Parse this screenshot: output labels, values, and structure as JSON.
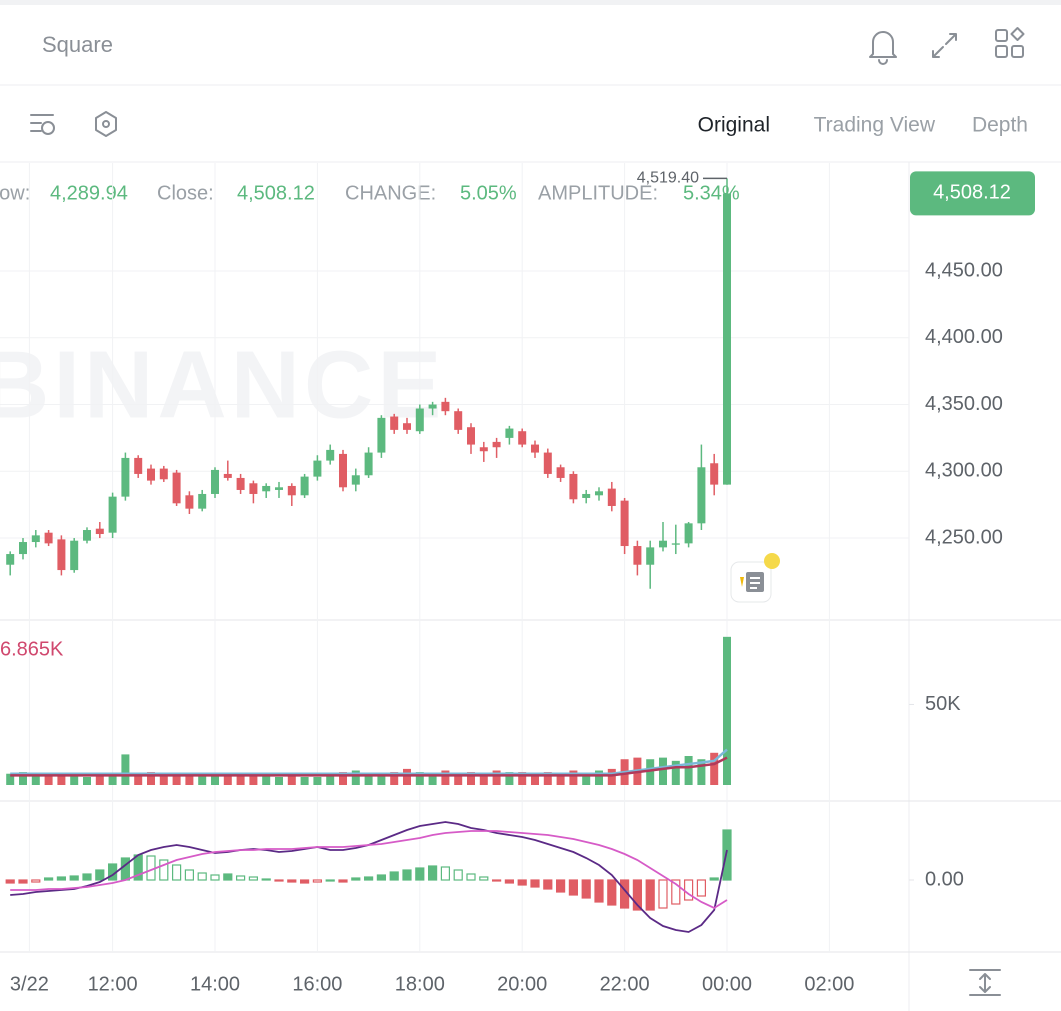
{
  "header": {
    "title": "Square"
  },
  "toolbar": {
    "tabs": [
      "Original",
      "Trading View",
      "Depth"
    ],
    "active_tab": 0
  },
  "info": {
    "items": [
      {
        "label": "Low:",
        "value": "4,289.94"
      },
      {
        "label": "Close:",
        "value": "4,508.12"
      },
      {
        "label": "CHANGE:",
        "value": "5.05%"
      },
      {
        "label": "AMPLITUDE:",
        "value": "5.34%"
      }
    ]
  },
  "chart_data": [
    {
      "type": "candlestick",
      "watermark": "BINANCE",
      "up_color": "#5cb97f",
      "down_color": "#e05d64",
      "last_price": {
        "value": 4508.12,
        "label": "4,508.12"
      },
      "high_marker": {
        "value": 4519.4,
        "label": "4,519.40"
      },
      "ylim": [
        4188.6,
        4530.9
      ],
      "yticks": [
        {
          "value": 4250,
          "label": "4,250.00"
        },
        {
          "value": 4300,
          "label": "4,300.00"
        },
        {
          "value": 4350,
          "label": "4,350.00"
        },
        {
          "value": 4400,
          "label": "4,400.00"
        },
        {
          "value": 4450,
          "label": "4,450.00"
        }
      ],
      "xticks": [
        {
          "value": 1.5,
          "label": "3/22"
        },
        {
          "value": 8,
          "label": "12:00"
        },
        {
          "value": 16,
          "label": "14:00"
        },
        {
          "value": 24,
          "label": "16:00"
        },
        {
          "value": 32,
          "label": "18:00"
        },
        {
          "value": 40,
          "label": "20:00"
        },
        {
          "value": 48,
          "label": "22:00"
        },
        {
          "value": 56,
          "label": "00:00"
        },
        {
          "value": 64,
          "label": "02:00"
        }
      ],
      "grid": true,
      "candles": [
        [
          4230,
          4240,
          4222,
          4238
        ],
        [
          4238,
          4250,
          4234,
          4247
        ],
        [
          4247,
          4256,
          4243,
          4252
        ],
        [
          4254,
          4256,
          4244,
          4246
        ],
        [
          4249,
          4252,
          4222,
          4226
        ],
        [
          4226,
          4250,
          4224,
          4248
        ],
        [
          4248,
          4258,
          4246,
          4256
        ],
        [
          4257,
          4262,
          4250,
          4253
        ],
        [
          4254,
          4284,
          4250,
          4281
        ],
        [
          4281,
          4314,
          4278,
          4310
        ],
        [
          4310,
          4312,
          4295,
          4298
        ],
        [
          4302,
          4305,
          4290,
          4293
        ],
        [
          4302,
          4304,
          4292,
          4294
        ],
        [
          4299,
          4301,
          4274,
          4276
        ],
        [
          4282,
          4285,
          4268,
          4272
        ],
        [
          4272,
          4286,
          4270,
          4283
        ],
        [
          4283,
          4303,
          4280,
          4301
        ],
        [
          4298,
          4308,
          4293,
          4295
        ],
        [
          4295,
          4298,
          4283,
          4286
        ],
        [
          4291,
          4293,
          4276,
          4283
        ],
        [
          4285,
          4291,
          4280,
          4289
        ],
        [
          4286,
          4292,
          4280,
          4288
        ],
        [
          4289,
          4291,
          4274,
          4282
        ],
        [
          4282,
          4298,
          4280,
          4296
        ],
        [
          4296,
          4312,
          4293,
          4308
        ],
        [
          4308,
          4320,
          4305,
          4316
        ],
        [
          4313,
          4316,
          4285,
          4288
        ],
        [
          4290,
          4302,
          4285,
          4297
        ],
        [
          4297,
          4318,
          4295,
          4314
        ],
        [
          4314,
          4342,
          4310,
          4340
        ],
        [
          4341,
          4343,
          4328,
          4331
        ],
        [
          4336,
          4340,
          4328,
          4331
        ],
        [
          4330,
          4350,
          4328,
          4347
        ],
        [
          4347,
          4352,
          4342,
          4350
        ],
        [
          4352,
          4355,
          4342,
          4345
        ],
        [
          4345,
          4347,
          4328,
          4331
        ],
        [
          4333,
          4336,
          4313,
          4320
        ],
        [
          4318,
          4322,
          4307,
          4315
        ],
        [
          4322,
          4325,
          4310,
          4318
        ],
        [
          4325,
          4334,
          4320,
          4332
        ],
        [
          4330,
          4332,
          4318,
          4320
        ],
        [
          4320,
          4323,
          4310,
          4314
        ],
        [
          4314,
          4317,
          4295,
          4298
        ],
        [
          4303,
          4305,
          4292,
          4295
        ],
        [
          4298,
          4300,
          4276,
          4279
        ],
        [
          4280,
          4286,
          4276,
          4283
        ],
        [
          4282,
          4288,
          4278,
          4285
        ],
        [
          4287,
          4292,
          4270,
          4274
        ],
        [
          4278,
          4280,
          4238,
          4244
        ],
        [
          4244,
          4248,
          4222,
          4230
        ],
        [
          4230,
          4248,
          4212,
          4243
        ],
        [
          4243,
          4262,
          4240,
          4248
        ],
        [
          4245,
          4260,
          4238,
          4246
        ],
        [
          4246,
          4262,
          4243,
          4261
        ],
        [
          4261,
          4320,
          4256,
          4303
        ],
        [
          4306,
          4313,
          4282,
          4290
        ],
        [
          4290,
          4519.4,
          4289.94,
          4508.12
        ]
      ]
    },
    {
      "type": "volume",
      "label": "6.865K",
      "label_color": "#d0486e",
      "ylim": [
        0,
        95
      ],
      "yticks": [
        {
          "value": 50,
          "label": "50K"
        }
      ],
      "values": [
        7,
        8,
        7,
        6,
        7,
        6,
        5,
        6,
        6,
        19,
        7,
        8,
        7,
        7,
        6,
        7,
        6,
        7,
        6,
        6,
        6,
        5,
        6,
        5,
        5,
        6,
        8,
        9,
        7,
        7,
        8,
        10,
        8,
        7,
        9,
        7,
        8,
        7,
        9,
        8,
        8,
        7,
        8,
        7,
        9,
        7,
        9,
        10,
        16,
        17,
        16,
        17,
        15,
        18,
        16,
        20,
        92
      ],
      "series": [
        {
          "color": "#7bb8d8",
          "values": [
            7,
            7,
            7,
            7,
            7,
            7,
            7,
            7,
            7,
            7,
            7,
            7,
            7,
            7,
            7,
            7,
            7,
            7,
            7,
            7,
            7,
            7,
            7,
            7,
            7,
            7,
            7,
            7,
            7,
            7,
            7,
            7,
            7,
            7,
            7,
            7,
            7,
            7,
            7,
            7,
            7,
            7,
            7,
            7,
            7,
            7,
            7,
            7,
            8,
            9,
            10,
            11,
            12,
            13,
            14,
            15,
            22
          ]
        },
        {
          "color": "#b03a5b",
          "values": [
            6,
            6,
            6,
            6,
            6,
            6,
            6,
            6,
            6,
            6,
            6,
            6,
            6,
            6,
            6,
            6,
            6,
            6,
            6,
            6,
            6,
            6,
            6,
            6,
            6,
            6,
            6,
            6,
            6,
            6,
            6,
            6,
            6,
            6,
            6,
            6,
            6,
            6,
            6,
            6,
            6,
            6,
            6,
            6,
            6,
            6,
            6,
            6,
            7,
            8,
            9,
            10,
            11,
            11,
            12,
            13,
            17
          ]
        }
      ]
    },
    {
      "type": "macd",
      "ylim": [
        -70,
        77
      ],
      "yticks": [
        {
          "value": 0,
          "label": "0.00"
        }
      ],
      "histogram": [
        -3,
        -3,
        -2,
        2,
        3,
        4,
        6,
        10,
        16,
        22,
        25,
        24,
        20,
        15,
        10,
        7,
        5,
        6,
        4,
        3,
        1,
        -1,
        -2,
        -3,
        -2,
        0,
        -2,
        2,
        3,
        5,
        8,
        10,
        12,
        14,
        13,
        10,
        6,
        3,
        -1,
        -3,
        -5,
        -7,
        -9,
        -12,
        -15,
        -18,
        -22,
        -25,
        -28,
        -30,
        -30,
        -28,
        -24,
        -20,
        -16,
        2,
        50
      ],
      "series": [
        {
          "color": "#5b2a86",
          "values": [
            -15,
            -14,
            -12,
            -11,
            -10,
            -9,
            -6,
            -2,
            5,
            15,
            25,
            30,
            33,
            35,
            33,
            30,
            27,
            28,
            30,
            31,
            30,
            28,
            29,
            31,
            33,
            30,
            30,
            32,
            35,
            40,
            45,
            50,
            54,
            56,
            58,
            56,
            52,
            50,
            47,
            45,
            43,
            40,
            36,
            32,
            28,
            22,
            15,
            5,
            -10,
            -25,
            -38,
            -46,
            -50,
            -52,
            -45,
            -30,
            30
          ]
        },
        {
          "color": "#d65bc7",
          "values": [
            -10,
            -10,
            -10,
            -9,
            -9,
            -8,
            -7,
            -5,
            -3,
            0,
            5,
            10,
            15,
            20,
            23,
            26,
            28,
            29,
            30,
            30,
            31,
            31,
            31,
            32,
            33,
            33,
            33,
            34,
            35,
            36,
            38,
            40,
            42,
            45,
            47,
            48,
            49,
            49,
            49,
            48,
            47,
            46,
            45,
            43,
            41,
            38,
            35,
            31,
            26,
            20,
            12,
            4,
            -4,
            -14,
            -22,
            -28,
            -20
          ]
        }
      ]
    }
  ]
}
